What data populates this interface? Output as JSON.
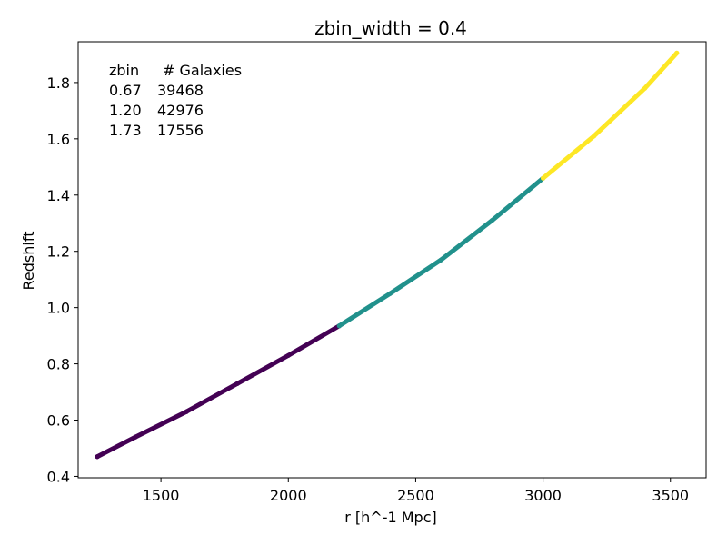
{
  "chart_data": {
    "type": "scatter",
    "title": "zbin_width = 0.4",
    "xlabel": "r [h^-1 Mpc]",
    "ylabel": "Redshift",
    "xlim": [
      1175,
      3640
    ],
    "ylim": [
      0.395,
      1.945
    ],
    "xticks": [
      1500,
      2000,
      2500,
      3000,
      3500
    ],
    "yticks": [
      0.4,
      0.6,
      0.8,
      1.0,
      1.2,
      1.4,
      1.6,
      1.8
    ],
    "xtick_labels": [
      "1500",
      "2000",
      "2500",
      "3000",
      "3500"
    ],
    "ytick_labels": [
      "0.4",
      "0.6",
      "0.8",
      "1.0",
      "1.2",
      "1.4",
      "1.6",
      "1.8"
    ],
    "grid": false,
    "table": {
      "header": [
        "zbin",
        "# Galaxies"
      ],
      "rows": [
        [
          "0.67",
          "39468"
        ],
        [
          "1.20",
          "42976"
        ],
        [
          "1.73",
          "17556"
        ]
      ]
    },
    "series": [
      {
        "color": "#440154",
        "points": [
          [
            1250,
            0.47
          ],
          [
            1400,
            0.54
          ],
          [
            1600,
            0.63
          ],
          [
            1800,
            0.73
          ],
          [
            2000,
            0.83
          ],
          [
            2200,
            0.935
          ]
        ]
      },
      {
        "color": "#21918c",
        "points": [
          [
            2200,
            0.935
          ],
          [
            2400,
            1.05
          ],
          [
            2600,
            1.17
          ],
          [
            2800,
            1.31
          ],
          [
            3000,
            1.46
          ]
        ]
      },
      {
        "color": "#fde725",
        "points": [
          [
            3000,
            1.46
          ],
          [
            3200,
            1.61
          ],
          [
            3400,
            1.78
          ],
          [
            3525,
            1.905
          ]
        ]
      }
    ]
  }
}
